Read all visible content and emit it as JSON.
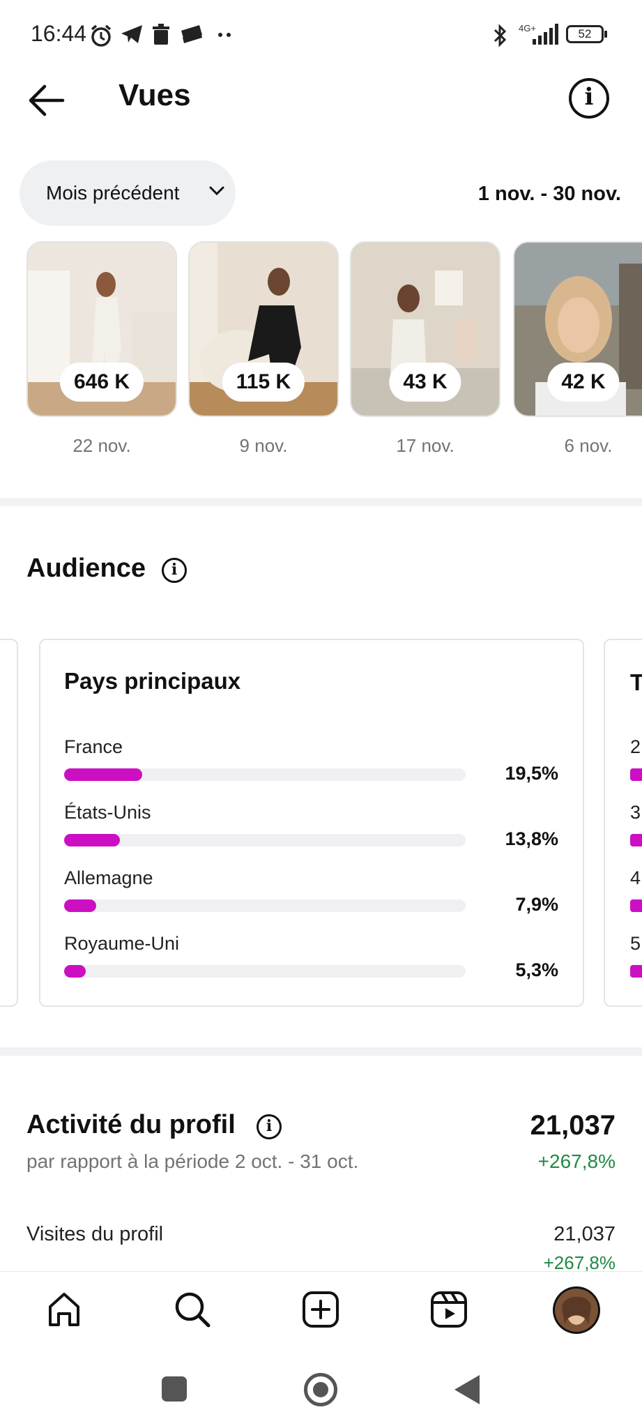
{
  "status": {
    "time": "16:44",
    "network": "4G+",
    "battery": "52"
  },
  "header": {
    "title": "Vues"
  },
  "period": {
    "dropdown_label": "Mois précédent",
    "range": "1 nov. - 30 nov."
  },
  "thumbnails": [
    {
      "views": "646 K",
      "date": "22 nov."
    },
    {
      "views": "115 K",
      "date": "9 nov."
    },
    {
      "views": "43 K",
      "date": "17 nov."
    },
    {
      "views": "42 K",
      "date": "6 nov."
    }
  ],
  "audience": {
    "title": "Audience",
    "card_title": "Pays principaux",
    "countries": [
      {
        "name": "France",
        "pct": "19,5%",
        "value": 19.5
      },
      {
        "name": "États-Unis",
        "pct": "13,8%",
        "value": 13.8
      },
      {
        "name": "Allemagne",
        "pct": "7,9%",
        "value": 7.9
      },
      {
        "name": "Royaume-Uni",
        "pct": "5,3%",
        "value": 5.3
      }
    ],
    "next_card_peek": {
      "title_initial": "T",
      "row_initials": [
        "2",
        "3",
        "4",
        "5"
      ]
    }
  },
  "activity": {
    "title": "Activité du profil",
    "subtitle": "par rapport à la période 2 oct. - 31 oct.",
    "value": "21,037",
    "change": "+267,8%",
    "visits_label": "Visites du profil",
    "visits_value": "21,037",
    "visits_change": "+267,8%"
  },
  "colors": {
    "accent_bar": "#cc0fc3",
    "positive": "#1f8a43",
    "chip_bg": "#eff0f2"
  },
  "nav": [
    "home-icon",
    "search-icon",
    "create-icon",
    "reels-icon",
    "profile-avatar"
  ]
}
